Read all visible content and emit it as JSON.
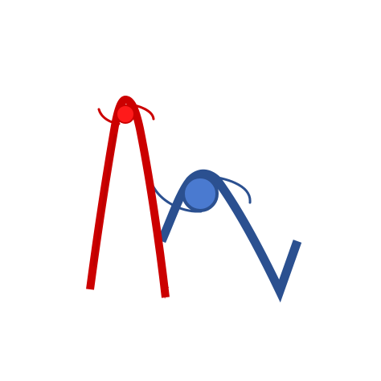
{
  "figures": [
    {
      "name": "red-figure",
      "colors": {
        "stroke": "#cc0000",
        "stroke_dark": "#b30000",
        "head_fill": "#ff1a1a",
        "head_outline": "#cc0000"
      }
    },
    {
      "name": "blue-figure",
      "colors": {
        "stroke": "#2b5090",
        "head_fill": "#4a7ad0",
        "head_outline": "#2b5090"
      }
    }
  ]
}
